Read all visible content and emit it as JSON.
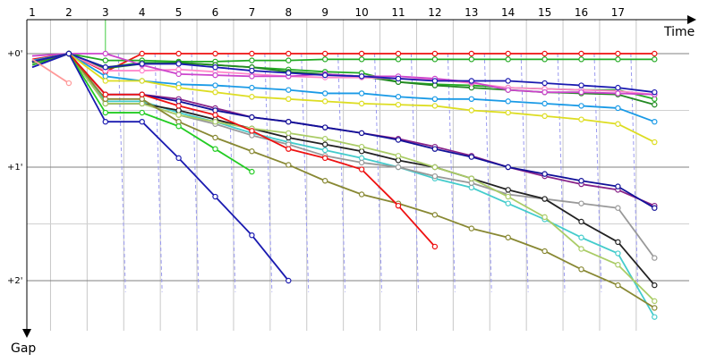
{
  "chart_data": {
    "type": "line",
    "title": "",
    "xlabel": "Time",
    "ylabel": "Gap",
    "x_ticks": [
      "1",
      "2",
      "3",
      "4",
      "5",
      "6",
      "7",
      "8",
      "9",
      "10",
      "11",
      "12",
      "13",
      "14",
      "15",
      "16",
      "17"
    ],
    "y_ticks": [
      "+0'",
      "+1'",
      "+2'"
    ],
    "ylim_minutes": [
      0,
      2
    ],
    "grid": true,
    "legend": "none",
    "series": [
      {
        "color": "#ee1111",
        "values": [
          0.05,
          0.0,
          0.16,
          0.0,
          0.0,
          0.0,
          0.0,
          0.0,
          0.0,
          0.0,
          0.0,
          0.0,
          0.0,
          0.0,
          0.0,
          0.0,
          0.0,
          0.0
        ]
      },
      {
        "color": "#22aa22",
        "values": [
          0.06,
          0.0,
          0.06,
          0.06,
          0.07,
          0.07,
          0.06,
          0.06,
          0.05,
          0.05,
          0.05,
          0.05,
          0.05,
          0.05,
          0.05,
          0.05,
          0.05,
          0.05
        ]
      },
      {
        "color": "#22aa22",
        "values": [
          0.1,
          0.0,
          0.12,
          0.08,
          0.08,
          0.1,
          0.12,
          0.14,
          0.16,
          0.17,
          0.25,
          0.27,
          0.28,
          0.3,
          0.31,
          0.32,
          0.32,
          0.4
        ]
      },
      {
        "color": "#228822",
        "values": [
          0.08,
          0.0,
          0.13,
          0.09,
          0.08,
          0.1,
          0.12,
          0.16,
          0.18,
          0.2,
          0.25,
          0.28,
          0.3,
          0.32,
          0.34,
          0.35,
          0.36,
          0.45
        ]
      },
      {
        "color": "#ff88cc",
        "values": [
          0.06,
          0.0,
          0.15,
          0.15,
          0.14,
          0.16,
          0.18,
          0.2,
          0.21,
          0.21,
          0.22,
          0.23,
          0.26,
          0.3,
          0.31,
          0.32,
          0.33,
          0.36
        ]
      },
      {
        "color": "#cc44cc",
        "values": [
          0.02,
          0.0,
          0.0,
          0.1,
          0.18,
          0.19,
          0.2,
          0.2,
          0.18,
          0.2,
          0.2,
          0.22,
          0.25,
          0.32,
          0.34,
          0.34,
          0.35,
          0.36
        ]
      },
      {
        "color": "#1a1ab0",
        "values": [
          0.12,
          0.0,
          0.12,
          0.09,
          0.09,
          0.12,
          0.15,
          0.17,
          0.19,
          0.2,
          0.22,
          0.24,
          0.24,
          0.24,
          0.26,
          0.28,
          0.3,
          0.34
        ]
      },
      {
        "color": "#1a9ae6",
        "values": [
          0.06,
          0.0,
          0.2,
          0.24,
          0.27,
          0.28,
          0.3,
          0.32,
          0.35,
          0.35,
          0.38,
          0.4,
          0.4,
          0.42,
          0.44,
          0.46,
          0.48,
          0.6
        ]
      },
      {
        "color": "#dddd22",
        "values": [
          0.07,
          0.0,
          0.24,
          0.24,
          0.3,
          0.34,
          0.38,
          0.4,
          0.42,
          0.44,
          0.45,
          0.46,
          0.5,
          0.52,
          0.55,
          0.58,
          0.62,
          0.78
        ]
      },
      {
        "color": "#882288",
        "values": [
          0.07,
          0.0,
          0.36,
          0.36,
          0.4,
          0.48,
          0.56,
          0.6,
          0.65,
          0.7,
          0.75,
          0.82,
          0.9,
          1.0,
          1.08,
          1.15,
          1.2,
          1.34
        ]
      },
      {
        "color": "#111199",
        "values": [
          0.07,
          0.0,
          0.36,
          0.36,
          0.42,
          0.5,
          0.56,
          0.6,
          0.65,
          0.7,
          0.76,
          0.84,
          0.91,
          1.0,
          1.06,
          1.12,
          1.17,
          1.36
        ]
      },
      {
        "color": "#44cccc",
        "values": [
          0.07,
          0.0,
          0.42,
          0.42,
          0.52,
          0.6,
          0.7,
          0.78,
          0.85,
          0.92,
          1.0,
          1.1,
          1.18,
          1.32,
          1.46,
          1.62,
          1.76,
          2.32
        ]
      },
      {
        "color": "#999999",
        "values": [
          0.07,
          0.0,
          0.44,
          0.44,
          0.54,
          0.62,
          0.72,
          0.8,
          0.9,
          0.96,
          1.0,
          1.08,
          1.14,
          1.24,
          1.28,
          1.32,
          1.36,
          1.8
        ]
      },
      {
        "color": "#222222",
        "values": [
          0.07,
          0.0,
          0.44,
          0.44,
          0.5,
          0.58,
          0.66,
          0.74,
          0.8,
          0.86,
          0.94,
          1.0,
          1.1,
          1.2,
          1.28,
          1.48,
          1.66,
          2.04
        ]
      },
      {
        "color": "#aacc66",
        "values": [
          0.07,
          0.0,
          0.44,
          0.44,
          0.54,
          0.6,
          0.66,
          0.7,
          0.75,
          0.82,
          0.9,
          1.0,
          1.1,
          1.26,
          1.44,
          1.72,
          1.86,
          2.18
        ]
      },
      {
        "color": "#888833",
        "values": [
          0.07,
          0.0,
          0.4,
          0.4,
          0.6,
          0.74,
          0.86,
          0.98,
          1.12,
          1.24,
          1.32,
          1.42,
          1.54,
          1.62,
          1.74,
          1.9,
          2.04,
          2.24
        ]
      },
      {
        "color": "#ee1111",
        "values": [
          0.07,
          0.0,
          0.36,
          0.36,
          0.46,
          0.54,
          0.68,
          0.84,
          0.92,
          1.02,
          1.34,
          1.7
        ]
      },
      {
        "color": "#22cc22",
        "values": [
          0.07,
          0.0,
          0.52,
          0.52,
          0.64,
          0.84,
          1.04
        ]
      },
      {
        "color": "#1a1ab0",
        "values": [
          0.07,
          0.0,
          0.6,
          0.6,
          0.92,
          1.26,
          1.6,
          2.0
        ]
      },
      {
        "color": "#ff9999",
        "values": [
          0.05,
          0.26
        ]
      }
    ],
    "vertical_guides": [
      2.0,
      2.8
    ]
  }
}
